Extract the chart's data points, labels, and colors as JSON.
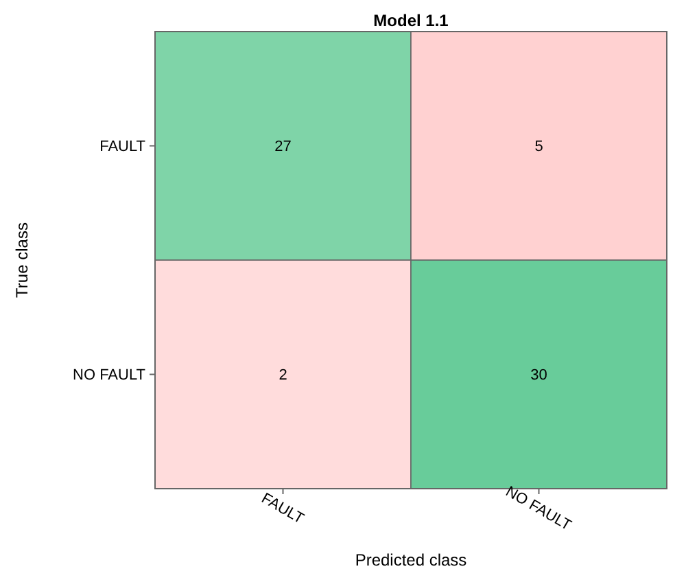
{
  "chart_data": {
    "type": "heatmap",
    "title": "Model 1.1",
    "xlabel": "Predicted class",
    "ylabel": "True class",
    "categories": [
      "FAULT",
      "NO FAULT"
    ],
    "y_categories": [
      "FAULT",
      "NO FAULT"
    ],
    "cells": [
      [
        27,
        5
      ],
      [
        2,
        30
      ]
    ],
    "colors": [
      [
        "#7fd4a8",
        "#ffd1d1"
      ],
      [
        "#ffdcdc",
        "#68cc9a"
      ]
    ],
    "data_labels": true
  }
}
